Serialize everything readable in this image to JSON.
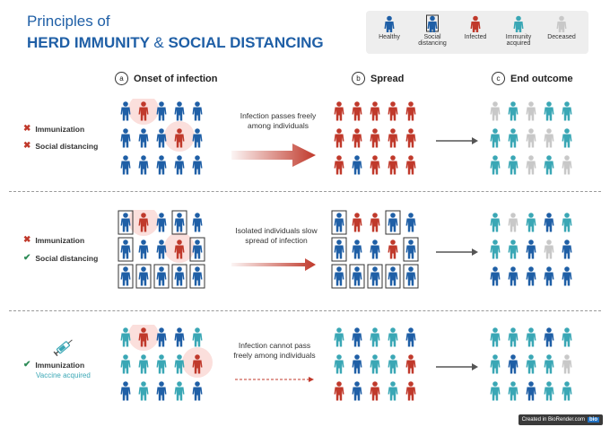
{
  "title": {
    "line1": "Principles of",
    "line2_a": "HERD IMMUNITY",
    "line2_amp": "&",
    "line2_b": "SOCIAL DISTANCING"
  },
  "legend": [
    {
      "key": "healthy",
      "label": "Healthy",
      "color": "#1f5fa6"
    },
    {
      "key": "social",
      "label": "Social distancing",
      "color": "#1f5fa6"
    },
    {
      "key": "infected",
      "label": "Infected",
      "color": "#c0392b"
    },
    {
      "key": "immune",
      "label": "Immunity acquired",
      "color": "#3aa7b5"
    },
    {
      "key": "deceased",
      "label": "Deceased",
      "color": "#c8c8c8"
    }
  ],
  "sections": [
    {
      "badge": "a",
      "label": "Onset of infection"
    },
    {
      "badge": "b",
      "label": "Spread"
    },
    {
      "badge": "c",
      "label": "End outcome"
    }
  ],
  "rows": [
    {
      "labels": [
        {
          "mark": "x",
          "text": "Immunization"
        },
        {
          "mark": "x",
          "text": "Social distancing"
        }
      ],
      "description": "Infection passes freely among individuals"
    },
    {
      "labels": [
        {
          "mark": "x",
          "text": "Immunization"
        },
        {
          "mark": "check",
          "text": "Social distancing"
        }
      ],
      "description": "Isolated individuals slow spread of infection"
    },
    {
      "labels": [
        {
          "mark": "check",
          "text": "Immunization"
        }
      ],
      "sublabel": "Vaccine acquired",
      "description": "Infection cannot pass freely among individuals"
    }
  ],
  "grids": {
    "r1a": [
      "HIHHH",
      "HHHIH",
      "HHHHH"
    ],
    "r1b": [
      "IIIII",
      "IIIII",
      "IHIII"
    ],
    "r1c": [
      "DMDMM",
      "MMDDM",
      "MMDMD"
    ],
    "r2a": [
      "SIHSH",
      "SHHIS",
      "SSSSS"
    ],
    "r2b": [
      "SIISH",
      "SHHIS",
      "SSSSS"
    ],
    "r2c": [
      "MDMHM",
      "MMHDH",
      "HHHHH"
    ],
    "r3a": [
      "MIHHM",
      "MMMMI",
      "HMHMH"
    ],
    "r3b": [
      "MHMMH",
      "MHMMI",
      "IHIMI"
    ],
    "r3c": [
      "MMMHM",
      "MHMMD",
      "MMHMM"
    ]
  },
  "halos": {
    "r1a": [
      [
        0,
        1
      ],
      [
        1,
        3
      ]
    ],
    "r2a": [
      [
        0,
        1
      ],
      [
        1,
        3
      ]
    ],
    "r3a": [
      [
        0,
        1
      ],
      [
        1,
        4
      ]
    ]
  },
  "footer": {
    "text": "Created in BioRender.com",
    "logo": "bio"
  }
}
